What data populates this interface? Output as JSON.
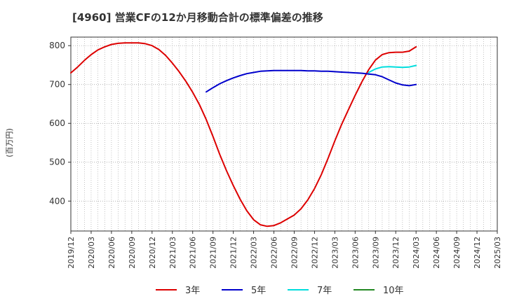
{
  "chart_data": {
    "type": "line",
    "title": "[4960]  営業CFの12か月移動合計の標準偏差の推移",
    "ylabel": "(百万円)",
    "xlabel": "",
    "ylim": [
      323,
      822
    ],
    "yticks": [
      400,
      500,
      600,
      700,
      800
    ],
    "xticks": [
      "2019/12",
      "2020/03",
      "2020/06",
      "2020/09",
      "2020/12",
      "2021/03",
      "2021/06",
      "2021/09",
      "2021/12",
      "2022/03",
      "2022/06",
      "2022/09",
      "2022/12",
      "2023/03",
      "2023/06",
      "2023/09",
      "2023/12",
      "2024/03",
      "2024/06",
      "2024/09",
      "2024/12",
      "2025/03"
    ],
    "grid": true,
    "legend_position": "bottom",
    "series": [
      {
        "name": "3年",
        "color": "#dd0000",
        "x": [
          "2019/12",
          "2020/01",
          "2020/02",
          "2020/03",
          "2020/04",
          "2020/05",
          "2020/06",
          "2020/07",
          "2020/08",
          "2020/09",
          "2020/10",
          "2020/11",
          "2020/12",
          "2021/01",
          "2021/02",
          "2021/03",
          "2021/04",
          "2021/05",
          "2021/06",
          "2021/07",
          "2021/08",
          "2021/09",
          "2021/10",
          "2021/11",
          "2021/12",
          "2022/01",
          "2022/02",
          "2022/03",
          "2022/04",
          "2022/05",
          "2022/06",
          "2022/07",
          "2022/08",
          "2022/09",
          "2022/10",
          "2022/11",
          "2022/12",
          "2023/01",
          "2023/02",
          "2023/03",
          "2023/04",
          "2023/05",
          "2023/06",
          "2023/07",
          "2023/08",
          "2023/09",
          "2023/10",
          "2023/11",
          "2023/12",
          "2024/01",
          "2024/02",
          "2024/03"
        ],
        "values": [
          730,
          745,
          762,
          777,
          789,
          797,
          803,
          806,
          807,
          807,
          807,
          805,
          800,
          790,
          775,
          755,
          733,
          708,
          680,
          648,
          610,
          566,
          520,
          478,
          440,
          405,
          375,
          352,
          339,
          335,
          337,
          344,
          354,
          364,
          380,
          403,
          432,
          468,
          510,
          555,
          597,
          635,
          672,
          707,
          738,
          763,
          777,
          782,
          783,
          783,
          786,
          797
        ]
      },
      {
        "name": "5年",
        "color": "#0000cc",
        "x": [
          "2021/08",
          "2021/09",
          "2021/10",
          "2021/11",
          "2021/12",
          "2022/01",
          "2022/02",
          "2022/03",
          "2022/04",
          "2022/05",
          "2022/06",
          "2022/07",
          "2022/08",
          "2022/09",
          "2022/10",
          "2022/11",
          "2022/12",
          "2023/01",
          "2023/02",
          "2023/03",
          "2023/04",
          "2023/05",
          "2023/06",
          "2023/07",
          "2023/08",
          "2023/09",
          "2023/10",
          "2023/11",
          "2023/12",
          "2024/01",
          "2024/02",
          "2024/03"
        ],
        "values": [
          681,
          692,
          702,
          710,
          717,
          723,
          728,
          731,
          734,
          735,
          736,
          736,
          736,
          736,
          736,
          735,
          735,
          734,
          734,
          733,
          732,
          731,
          730,
          729,
          727,
          725,
          720,
          712,
          704,
          699,
          697,
          700
        ]
      },
      {
        "name": "7年",
        "color": "#00dddd",
        "x": [
          "2023/08",
          "2023/09",
          "2023/10",
          "2023/11",
          "2023/12",
          "2024/01",
          "2024/02",
          "2024/03"
        ],
        "values": [
          731,
          740,
          745,
          746,
          745,
          744,
          745,
          749
        ]
      },
      {
        "name": "10年",
        "color": "#228822",
        "x": [],
        "values": []
      }
    ]
  }
}
